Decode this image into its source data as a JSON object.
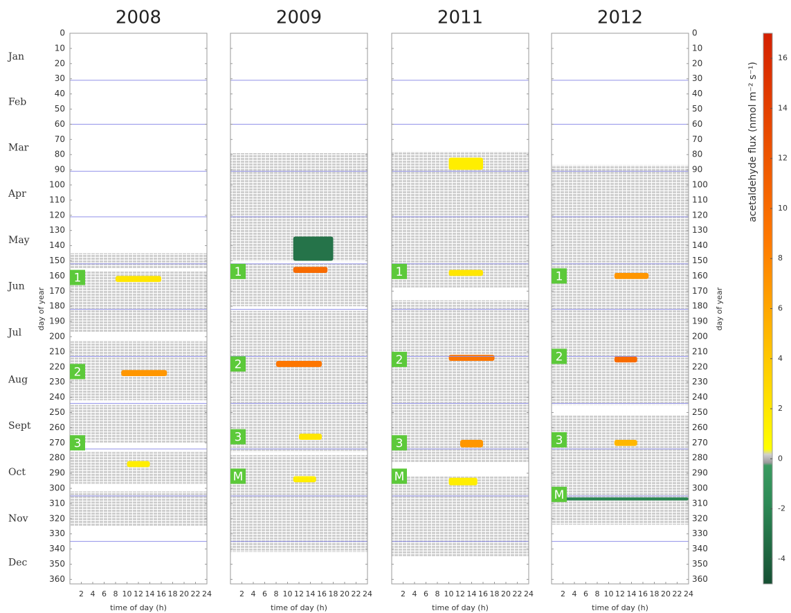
{
  "chart_data": {
    "type": "heatmap",
    "xlabel": "time of day (h)",
    "ylabel": "day of year",
    "xlim": [
      0,
      24
    ],
    "xticks": [
      2,
      4,
      6,
      8,
      10,
      12,
      14,
      16,
      18,
      20,
      22,
      24
    ],
    "ylim": [
      0,
      363
    ],
    "yticks": [
      0,
      10,
      20,
      30,
      40,
      50,
      60,
      70,
      80,
      90,
      100,
      110,
      120,
      130,
      140,
      150,
      160,
      170,
      180,
      190,
      200,
      210,
      220,
      230,
      240,
      250,
      260,
      270,
      280,
      290,
      300,
      310,
      320,
      330,
      340,
      350,
      360
    ],
    "months": [
      "Jan",
      "Feb",
      "Mar",
      "Apr",
      "May",
      "Jun",
      "Jul",
      "Aug",
      "Sept",
      "Oct",
      "Nov",
      "Dec"
    ],
    "month_starts": [
      31,
      60,
      91,
      121,
      152,
      182,
      213,
      244,
      274,
      305,
      335
    ],
    "month_line_color": "#8f8fe8",
    "coverage_color": "#cfcfcf",
    "event_color": "#5cc93a",
    "colorbar": {
      "label": "acetaldehyde flux (nmol m⁻² s⁻¹)",
      "clim": [
        -5,
        17
      ],
      "cticks": [
        -4,
        -2,
        0,
        2,
        4,
        6,
        8,
        10,
        12,
        14,
        16
      ]
    },
    "panels": [
      {
        "title": "2008",
        "coverage": [
          [
            145,
            155
          ],
          [
            157,
            197
          ],
          [
            203,
            242
          ],
          [
            245,
            270
          ],
          [
            276,
            297
          ],
          [
            302,
            325
          ]
        ],
        "events": [
          {
            "label": "1",
            "day": 161
          },
          {
            "label": "2",
            "day": 223
          },
          {
            "label": "3",
            "day": 270
          }
        ],
        "hotspots": [
          {
            "days": [
              160,
              164
            ],
            "hours": [
              8,
              16
            ],
            "value": 2
          },
          {
            "days": [
              222,
              226
            ],
            "hours": [
              9,
              17
            ],
            "value": 7
          },
          {
            "days": [
              282,
              286
            ],
            "hours": [
              10,
              14
            ],
            "value": 1.5
          }
        ]
      },
      {
        "title": "2009",
        "coverage": [
          [
            79,
            150
          ],
          [
            152,
            180
          ],
          [
            183,
            276
          ],
          [
            278,
            342
          ]
        ],
        "events": [
          {
            "label": "1",
            "day": 157
          },
          {
            "label": "2",
            "day": 218
          },
          {
            "label": "3",
            "day": 266
          },
          {
            "label": "M",
            "day": 292
          }
        ],
        "hotspots": [
          {
            "days": [
              134,
              150
            ],
            "hours": [
              11,
              18
            ],
            "value": -3
          },
          {
            "days": [
              154,
              158
            ],
            "hours": [
              11,
              17
            ],
            "value": 10
          },
          {
            "days": [
              216,
              220
            ],
            "hours": [
              8,
              16
            ],
            "value": 9
          },
          {
            "days": [
              264,
              268
            ],
            "hours": [
              12,
              16
            ],
            "value": 2
          },
          {
            "days": [
              292,
              296
            ],
            "hours": [
              11,
              15
            ],
            "value": 1.5
          }
        ]
      },
      {
        "title": "2011",
        "coverage": [
          [
            78,
            168
          ],
          [
            176,
            283
          ],
          [
            292,
            345
          ]
        ],
        "events": [
          {
            "label": "1",
            "day": 157
          },
          {
            "label": "2",
            "day": 215
          },
          {
            "label": "3",
            "day": 270
          },
          {
            "label": "M",
            "day": 292
          }
        ],
        "hotspots": [
          {
            "days": [
              82,
              90
            ],
            "hours": [
              10,
              16
            ],
            "value": 1.5
          },
          {
            "days": [
              156,
              160
            ],
            "hours": [
              10,
              16
            ],
            "value": 2
          },
          {
            "days": [
              212,
              216
            ],
            "hours": [
              10,
              18
            ],
            "value": 9
          },
          {
            "days": [
              268,
              273
            ],
            "hours": [
              12,
              16
            ],
            "value": 7
          },
          {
            "days": [
              293,
              298
            ],
            "hours": [
              10,
              15
            ],
            "value": 1.5
          }
        ]
      },
      {
        "title": "2012",
        "coverage": [
          [
            87,
            245
          ],
          [
            252,
            324
          ]
        ],
        "events": [
          {
            "label": "1",
            "day": 160
          },
          {
            "label": "2",
            "day": 213
          },
          {
            "label": "3",
            "day": 268
          },
          {
            "label": "M",
            "day": 304
          }
        ],
        "hotspots": [
          {
            "days": [
              158,
              162
            ],
            "hours": [
              11,
              17
            ],
            "value": 7
          },
          {
            "days": [
              213,
              217
            ],
            "hours": [
              11,
              15
            ],
            "value": 10
          },
          {
            "days": [
              268,
              272
            ],
            "hours": [
              11,
              15
            ],
            "value": 5
          },
          {
            "days": [
              306,
              308
            ],
            "hours": [
              2,
              24
            ],
            "value": -2
          }
        ]
      }
    ]
  }
}
